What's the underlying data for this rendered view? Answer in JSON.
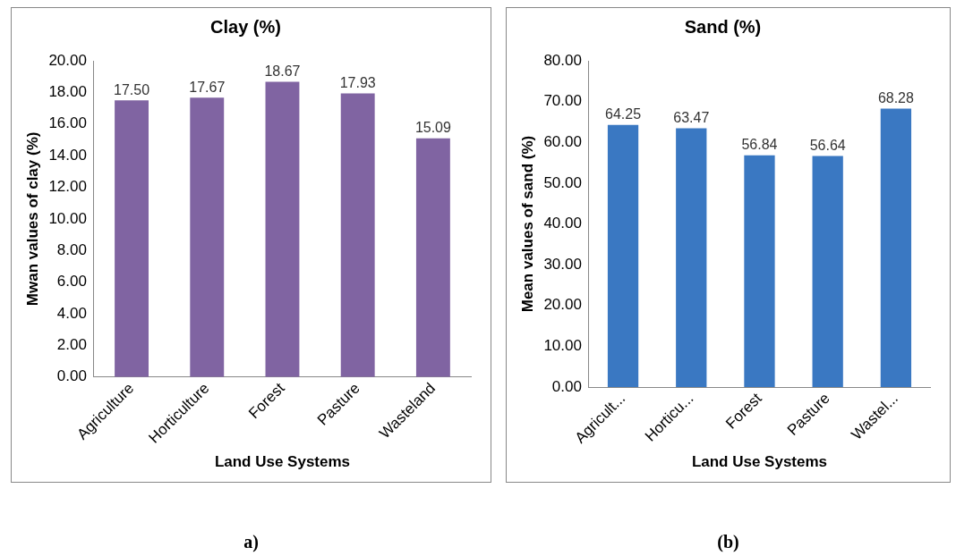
{
  "chart_data": [
    {
      "type": "bar",
      "title": "Clay (%)",
      "xlabel": "Land Use Systems",
      "ylabel": "Mwan values of clay (%)",
      "categories": [
        "Agriculture",
        "Horticulture",
        "Forest",
        "Pasture",
        "Wasteland"
      ],
      "values": [
        17.5,
        17.67,
        18.67,
        17.93,
        15.09
      ],
      "value_labels": [
        "17.50",
        "17.67",
        "18.67",
        "17.93",
        "15.09"
      ],
      "color": "#8064a2",
      "ylim": [
        0,
        20
      ],
      "yticks": [
        {
          "value": 0,
          "label": "0.00"
        },
        {
          "value": 2,
          "label": "2.00"
        },
        {
          "value": 4,
          "label": "4.00"
        },
        {
          "value": 6,
          "label": "6.00"
        },
        {
          "value": 8,
          "label": "8.00"
        },
        {
          "value": 10,
          "label": "10.00"
        },
        {
          "value": 12,
          "label": "12.00"
        },
        {
          "value": 14,
          "label": "14.00"
        },
        {
          "value": 16,
          "label": "16.00"
        },
        {
          "value": 18,
          "label": "18.00"
        },
        {
          "value": 20,
          "label": "20.00"
        }
      ],
      "annotations": [
        "a)"
      ]
    },
    {
      "type": "bar",
      "title": "Sand (%)",
      "xlabel": "Land Use Systems",
      "ylabel": "Mean values of sand (%)",
      "categories": [
        "Agricult...",
        "Horticu...",
        "Forest",
        "Pasture",
        "Wastel..."
      ],
      "values": [
        64.25,
        63.47,
        56.84,
        56.64,
        68.28
      ],
      "value_labels": [
        "64.25",
        "63.47",
        "56.84",
        "56.64",
        "68.28"
      ],
      "color": "#3a78c2",
      "ylim": [
        0,
        80
      ],
      "yticks": [
        {
          "value": 0,
          "label": "0.00"
        },
        {
          "value": 10,
          "label": "10.00"
        },
        {
          "value": 20,
          "label": "20.00"
        },
        {
          "value": 30,
          "label": "30.00"
        },
        {
          "value": 40,
          "label": "40.00"
        },
        {
          "value": 50,
          "label": "50.00"
        },
        {
          "value": 60,
          "label": "60.00"
        },
        {
          "value": 70,
          "label": "70.00"
        },
        {
          "value": 80,
          "label": "80.00"
        }
      ],
      "annotations": [
        "(b)"
      ]
    }
  ]
}
